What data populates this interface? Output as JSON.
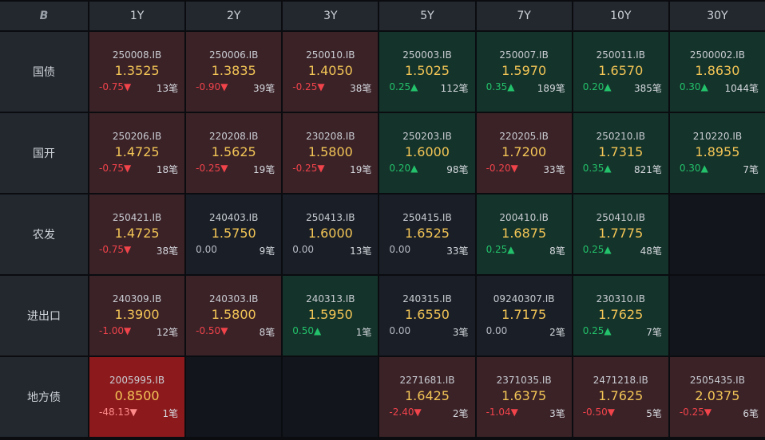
{
  "corner_logo": "B",
  "tenors": [
    "1Y",
    "2Y",
    "3Y",
    "5Y",
    "7Y",
    "10Y",
    "30Y"
  ],
  "rows": [
    {
      "label": "国债",
      "cells": [
        {
          "code": "250008.IB",
          "yield": "1.3525",
          "change": "-0.75▼",
          "count": "13笔",
          "tone": "red",
          "dir": "neg"
        },
        {
          "code": "250006.IB",
          "yield": "1.3835",
          "change": "-0.90▼",
          "count": "39笔",
          "tone": "red",
          "dir": "neg"
        },
        {
          "code": "250010.IB",
          "yield": "1.4050",
          "change": "-0.25▼",
          "count": "38笔",
          "tone": "red",
          "dir": "neg"
        },
        {
          "code": "250003.IB",
          "yield": "1.5025",
          "change": "0.25▲",
          "count": "112笔",
          "tone": "green",
          "dir": "pos"
        },
        {
          "code": "250007.IB",
          "yield": "1.5970",
          "change": "0.35▲",
          "count": "189笔",
          "tone": "green",
          "dir": "pos"
        },
        {
          "code": "250011.IB",
          "yield": "1.6570",
          "change": "0.20▲",
          "count": "385笔",
          "tone": "green",
          "dir": "pos"
        },
        {
          "code": "2500002.IB",
          "yield": "1.8630",
          "change": "0.30▲",
          "count": "1044笔",
          "tone": "green",
          "dir": "pos"
        }
      ]
    },
    {
      "label": "国开",
      "cells": [
        {
          "code": "250206.IB",
          "yield": "1.4725",
          "change": "-0.75▼",
          "count": "18笔",
          "tone": "red",
          "dir": "neg"
        },
        {
          "code": "220208.IB",
          "yield": "1.5625",
          "change": "-0.25▼",
          "count": "19笔",
          "tone": "red",
          "dir": "neg"
        },
        {
          "code": "230208.IB",
          "yield": "1.5800",
          "change": "-0.25▼",
          "count": "19笔",
          "tone": "red",
          "dir": "neg"
        },
        {
          "code": "250203.IB",
          "yield": "1.6000",
          "change": "0.20▲",
          "count": "98笔",
          "tone": "green",
          "dir": "pos"
        },
        {
          "code": "220205.IB",
          "yield": "1.7200",
          "change": "-0.20▼",
          "count": "33笔",
          "tone": "red",
          "dir": "neg"
        },
        {
          "code": "250210.IB",
          "yield": "1.7315",
          "change": "0.35▲",
          "count": "821笔",
          "tone": "green",
          "dir": "pos"
        },
        {
          "code": "210220.IB",
          "yield": "1.8955",
          "change": "0.30▲",
          "count": "7笔",
          "tone": "green",
          "dir": "pos"
        }
      ]
    },
    {
      "label": "农发",
      "cells": [
        {
          "code": "250421.IB",
          "yield": "1.4725",
          "change": "-0.75▼",
          "count": "38笔",
          "tone": "red",
          "dir": "neg"
        },
        {
          "code": "240403.IB",
          "yield": "1.5750",
          "change": "0.00",
          "count": "9笔",
          "tone": "neutral",
          "dir": "zero"
        },
        {
          "code": "250413.IB",
          "yield": "1.6000",
          "change": "0.00",
          "count": "13笔",
          "tone": "neutral",
          "dir": "zero"
        },
        {
          "code": "250415.IB",
          "yield": "1.6525",
          "change": "0.00",
          "count": "33笔",
          "tone": "neutral",
          "dir": "zero"
        },
        {
          "code": "200410.IB",
          "yield": "1.6875",
          "change": "0.25▲",
          "count": "8笔",
          "tone": "green",
          "dir": "pos"
        },
        {
          "code": "250410.IB",
          "yield": "1.7775",
          "change": "0.25▲",
          "count": "48笔",
          "tone": "green",
          "dir": "pos"
        },
        null
      ]
    },
    {
      "label": "进出口",
      "cells": [
        {
          "code": "240309.IB",
          "yield": "1.3900",
          "change": "-1.00▼",
          "count": "12笔",
          "tone": "red",
          "dir": "neg"
        },
        {
          "code": "240303.IB",
          "yield": "1.5800",
          "change": "-0.50▼",
          "count": "8笔",
          "tone": "red",
          "dir": "neg"
        },
        {
          "code": "240313.IB",
          "yield": "1.5950",
          "change": "0.50▲",
          "count": "1笔",
          "tone": "green",
          "dir": "pos"
        },
        {
          "code": "240315.IB",
          "yield": "1.6550",
          "change": "0.00",
          "count": "3笔",
          "tone": "neutral",
          "dir": "zero"
        },
        {
          "code": "09240307.IB",
          "yield": "1.7175",
          "change": "0.00",
          "count": "2笔",
          "tone": "neutral",
          "dir": "zero"
        },
        {
          "code": "230310.IB",
          "yield": "1.7625",
          "change": "0.25▲",
          "count": "7笔",
          "tone": "green",
          "dir": "pos"
        },
        null
      ]
    },
    {
      "label": "地方债",
      "cells": [
        {
          "code": "2005995.IB",
          "yield": "0.8500",
          "change": "-48.13▼",
          "count": "1笔",
          "tone": "hot",
          "dir": "neg"
        },
        null,
        null,
        {
          "code": "2271681.IB",
          "yield": "1.6425",
          "change": "-2.40▼",
          "count": "2笔",
          "tone": "red",
          "dir": "neg"
        },
        {
          "code": "2371035.IB",
          "yield": "1.6375",
          "change": "-1.04▼",
          "count": "3笔",
          "tone": "red",
          "dir": "neg"
        },
        {
          "code": "2471218.IB",
          "yield": "1.7625",
          "change": "-0.50▼",
          "count": "5笔",
          "tone": "red",
          "dir": "neg"
        },
        {
          "code": "2505435.IB",
          "yield": "2.0375",
          "change": "-0.25▼",
          "count": "6笔",
          "tone": "red",
          "dir": "neg"
        }
      ]
    }
  ]
}
